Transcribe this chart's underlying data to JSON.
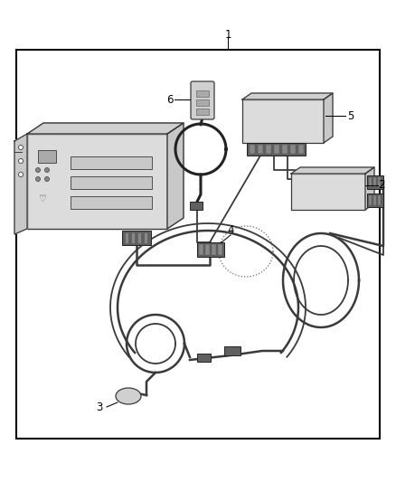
{
  "bg": "#ffffff",
  "wire_color": "#3a3a3a",
  "lw_wire": 1.3,
  "lw_wire_thick": 1.8,
  "box_face": "#e8e8e8",
  "box_edge": "#3a3a3a",
  "conn_face": "#606060",
  "conn_edge": "#222222",
  "border_lw": 1.5,
  "label_fs": 8.5,
  "leader_lw": 0.75
}
